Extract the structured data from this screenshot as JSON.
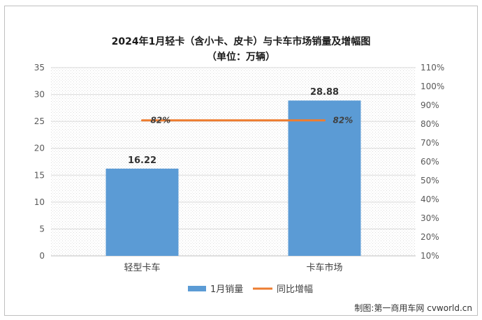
{
  "chart_data": {
    "type": "bar",
    "title": "2024年1月轻卡（含小卡、皮卡）与卡车市场销量及增幅图",
    "subtitle": "（单位：万辆）",
    "categories": [
      "轻型卡车",
      "卡车市场"
    ],
    "series": [
      {
        "name": "1月销量",
        "type": "bar",
        "axis": "left",
        "color": "#5b9bd5",
        "values": [
          16.22,
          28.88
        ],
        "labels": [
          "16.22",
          "28.88"
        ]
      },
      {
        "name": "同比增幅",
        "type": "line",
        "axis": "right",
        "color": "#ed7d31",
        "values": [
          0.82,
          0.82
        ],
        "labels": [
          "82%",
          "82%"
        ]
      }
    ],
    "y_left": {
      "min": 0,
      "max": 35,
      "step": 5,
      "ticks": [
        "0",
        "5",
        "10",
        "15",
        "20",
        "25",
        "30",
        "35"
      ]
    },
    "y_right": {
      "min": 0.1,
      "max": 1.1,
      "step": 0.1,
      "ticks": [
        "10%",
        "20%",
        "30%",
        "40%",
        "50%",
        "60%",
        "70%",
        "80%",
        "90%",
        "100%",
        "110%"
      ]
    },
    "grid": true,
    "legend_position": "bottom"
  },
  "credit": "制图:第一商用车网 cvworld.cn"
}
